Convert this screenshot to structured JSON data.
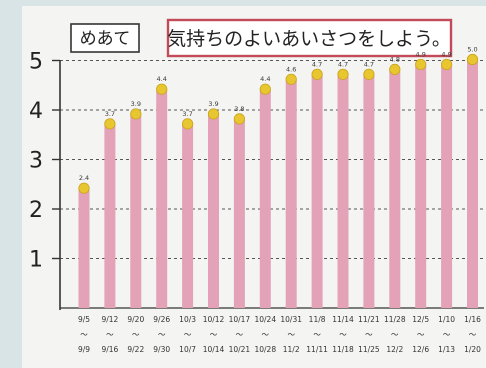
{
  "header": {
    "label": "めあて",
    "goal": "気持ちのよいあいさつをしよう。"
  },
  "colors": {
    "bar": "#e3a2b8",
    "sticker": "#e7c62f",
    "frame": "#c34a58",
    "axis": "#333333",
    "paper": "#f4f4f2"
  },
  "chart_data": {
    "type": "bar",
    "title": "気持ちのよいあいさつをしよう。",
    "ylim": [
      0,
      5
    ],
    "yticks": [
      "1",
      "2",
      "3",
      "4",
      "5"
    ],
    "grid": true,
    "categories": [
      [
        "9/5",
        "〜",
        "9/9"
      ],
      [
        "9/12",
        "〜",
        "9/16"
      ],
      [
        "9/20",
        "〜",
        "9/22"
      ],
      [
        "9/26",
        "〜",
        "9/30"
      ],
      [
        "10/3",
        "〜",
        "10/7"
      ],
      [
        "10/12",
        "〜",
        "10/14"
      ],
      [
        "10/17",
        "〜",
        "10/21"
      ],
      [
        "10/24",
        "〜",
        "10/28"
      ],
      [
        "10/31",
        "〜",
        "11/2"
      ],
      [
        "11/8",
        "〜",
        "11/11"
      ],
      [
        "11/14",
        "〜",
        "11/18"
      ],
      [
        "11/21",
        "〜",
        "11/25"
      ],
      [
        "11/28",
        "〜",
        "12/2"
      ],
      [
        "12/5",
        "〜",
        "12/6"
      ],
      [
        "1/10",
        "〜",
        "1/13"
      ],
      [
        "1/16",
        "〜",
        "1/20"
      ]
    ],
    "values": [
      2.4,
      3.7,
      3.9,
      4.4,
      3.7,
      3.9,
      3.8,
      4.4,
      4.6,
      4.7,
      4.7,
      4.7,
      4.8,
      4.9,
      4.9,
      5.0
    ],
    "data_labels": [
      "2.4",
      "3.7",
      "3.9",
      "4.4",
      "3.7",
      "3.9",
      "3.8",
      "4.4",
      "4.6",
      "4.7",
      "4.7",
      "4.7",
      "4.8",
      "4.9",
      "4.9",
      "5.0"
    ]
  }
}
